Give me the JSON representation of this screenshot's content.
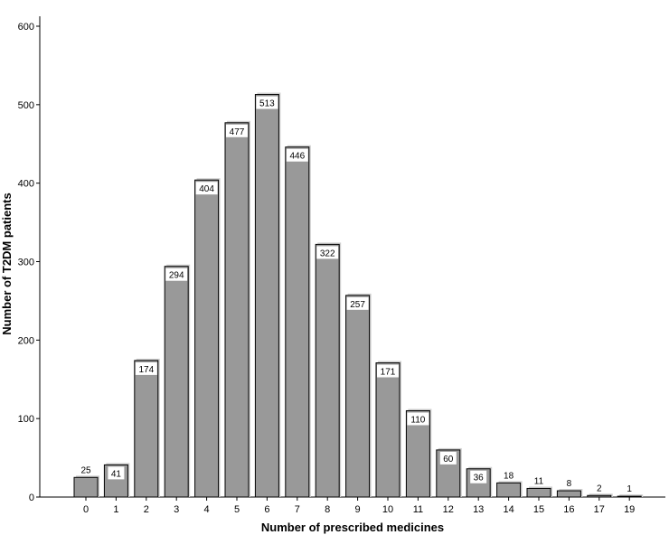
{
  "chart_data": {
    "type": "bar",
    "title": "",
    "xlabel": "Number of prescribed medicines",
    "ylabel": "Number of T2DM patients",
    "categories": [
      "0",
      "1",
      "2",
      "3",
      "4",
      "5",
      "6",
      "7",
      "8",
      "9",
      "10",
      "11",
      "12",
      "13",
      "14",
      "15",
      "16",
      "17",
      "19"
    ],
    "values": [
      25,
      41,
      174,
      294,
      404,
      477,
      513,
      446,
      322,
      257,
      171,
      110,
      60,
      36,
      18,
      11,
      8,
      2,
      1
    ],
    "ylim": [
      0,
      600
    ],
    "yticks": [
      0,
      100,
      200,
      300,
      400,
      500,
      600
    ],
    "grid": false,
    "legend": "none",
    "bar_color": "#999999",
    "bar_edge_color": "#000000"
  }
}
